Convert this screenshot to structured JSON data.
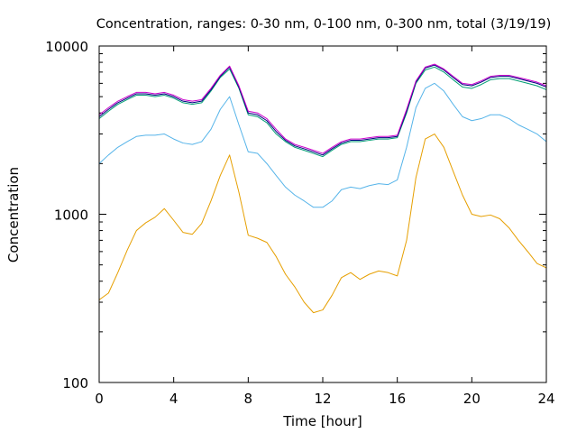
{
  "chart_data": {
    "type": "line",
    "title": "Concentration, ranges: 0-30 nm, 0-100 nm, 0-300 nm, total (3/19/19)",
    "xlabel": "Time [hour]",
    "ylabel": "Concentration",
    "xlim": [
      0,
      24
    ],
    "ylim": [
      100,
      10000
    ],
    "yscale": "log",
    "grid": false,
    "legend": "none",
    "x_ticks": [
      "0",
      "4",
      "8",
      "12",
      "16",
      "20",
      "24"
    ],
    "x_tick_values": [
      0,
      4,
      8,
      12,
      16,
      20,
      24
    ],
    "y_ticks": [
      "100",
      "1000",
      "10000"
    ],
    "y_tick_values": [
      100,
      1000,
      10000
    ],
    "x": [
      0,
      0.5,
      1,
      1.5,
      2,
      2.5,
      3,
      3.5,
      4,
      4.5,
      5,
      5.5,
      6,
      6.5,
      7,
      7.5,
      8,
      8.5,
      9,
      9.5,
      10,
      10.5,
      11,
      11.5,
      12,
      12.5,
      13,
      13.5,
      14,
      14.5,
      15,
      15.5,
      16,
      16.5,
      17,
      17.5,
      18,
      18.5,
      19,
      19.5,
      20,
      20.5,
      21,
      21.5,
      22,
      22.5,
      23,
      23.5,
      24
    ],
    "series": [
      {
        "color": "#e69f00",
        "values": [
          310,
          340,
          450,
          610,
          800,
          890,
          960,
          1080,
          920,
          780,
          760,
          880,
          1200,
          1700,
          2250,
          1350,
          750,
          720,
          680,
          560,
          440,
          370,
          300,
          260,
          270,
          330,
          420,
          450,
          410,
          440,
          460,
          450,
          430,
          700,
          1650,
          2800,
          3000,
          2500,
          1800,
          1300,
          1000,
          970,
          990,
          940,
          830,
          700,
          600,
          510,
          480
        ]
      },
      {
        "color": "#56b4e9",
        "values": [
          2000,
          2250,
          2500,
          2700,
          2900,
          2950,
          2950,
          3000,
          2800,
          2650,
          2600,
          2700,
          3200,
          4200,
          5000,
          3400,
          2350,
          2300,
          2000,
          1700,
          1450,
          1300,
          1200,
          1100,
          1100,
          1200,
          1400,
          1450,
          1420,
          1480,
          1520,
          1500,
          1600,
          2500,
          4300,
          5600,
          6000,
          5400,
          4500,
          3800,
          3600,
          3700,
          3900,
          3900,
          3700,
          3400,
          3200,
          3000,
          2700
        ]
      },
      {
        "color": "#009e73",
        "values": [
          3700,
          4100,
          4500,
          4800,
          5100,
          5100,
          5000,
          5100,
          4900,
          4600,
          4500,
          4600,
          5400,
          6500,
          7300,
          5600,
          3900,
          3800,
          3500,
          3000,
          2700,
          2500,
          2400,
          2300,
          2200,
          2400,
          2600,
          2700,
          2700,
          2750,
          2800,
          2800,
          2850,
          4000,
          6000,
          7200,
          7500,
          7000,
          6300,
          5700,
          5600,
          5900,
          6300,
          6400,
          6400,
          6200,
          6000,
          5800,
          5500
        ]
      },
      {
        "color": "#000080",
        "values": [
          3800,
          4200,
          4600,
          4900,
          5200,
          5200,
          5100,
          5200,
          5000,
          4700,
          4600,
          4700,
          5500,
          6600,
          7500,
          5700,
          4000,
          3900,
          3600,
          3100,
          2750,
          2550,
          2450,
          2350,
          2250,
          2450,
          2650,
          2750,
          2750,
          2800,
          2850,
          2850,
          2900,
          4100,
          6100,
          7400,
          7700,
          7200,
          6500,
          5900,
          5800,
          6100,
          6500,
          6600,
          6600,
          6400,
          6200,
          6000,
          5700
        ]
      },
      {
        "color": "#cc00cc",
        "values": [
          3900,
          4300,
          4700,
          5000,
          5300,
          5300,
          5200,
          5300,
          5100,
          4800,
          4700,
          4800,
          5600,
          6700,
          7600,
          5800,
          4100,
          4000,
          3700,
          3200,
          2800,
          2600,
          2500,
          2400,
          2300,
          2500,
          2700,
          2800,
          2800,
          2850,
          2900,
          2900,
          2950,
          4200,
          6200,
          7500,
          7800,
          7300,
          6600,
          6000,
          5900,
          6200,
          6600,
          6700,
          6700,
          6500,
          6300,
          6100,
          5800
        ]
      }
    ]
  }
}
